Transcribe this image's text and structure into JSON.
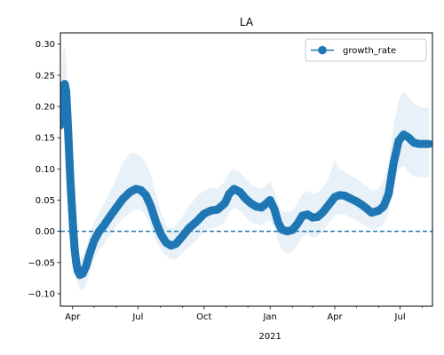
{
  "chart_data": {
    "type": "line",
    "title": "LA",
    "xlabel": "",
    "ylabel": "",
    "ylim": [
      -0.12,
      0.318
    ],
    "xlim": [
      "2020-03-15",
      "2021-08-15"
    ],
    "grid": false,
    "legend": {
      "position": "top-right"
    },
    "y_ticks": [
      -0.1,
      -0.05,
      0.0,
      0.05,
      0.1,
      0.15,
      0.2,
      0.25,
      0.3
    ],
    "y_tick_labels": [
      "−0.10",
      "−0.05",
      "0.00",
      "0.05",
      "0.10",
      "0.15",
      "0.20",
      "0.25",
      "0.30"
    ],
    "x_ticks": [
      "2020-04-01",
      "2020-07-01",
      "2020-10-01",
      "2021-01-01",
      "2021-04-01",
      "2021-07-01"
    ],
    "x_tick_labels": [
      "Apr",
      "Jul",
      "Oct",
      "Jan",
      "Apr",
      "Jul"
    ],
    "x_year_label": "2021",
    "x_minor_ticks": [
      "2020-05-01",
      "2020-06-01",
      "2020-08-01",
      "2020-09-01",
      "2020-11-01",
      "2020-12-01",
      "2021-02-01",
      "2021-03-01",
      "2021-05-01",
      "2021-06-01",
      "2021-08-01"
    ],
    "reference_line": {
      "y": 0.0,
      "style": "dashed",
      "color": "#1f77b4"
    },
    "series": [
      {
        "name": "growth_rate",
        "color": "#1f77b4",
        "marker": "circle",
        "band_color": "#1f77b4",
        "points": [
          [
            "2020-03-15",
            0.17,
            0.15,
            0.2
          ],
          [
            "2020-03-17",
            0.21,
            0.18,
            0.26
          ],
          [
            "2020-03-19",
            0.232,
            0.19,
            0.29
          ],
          [
            "2020-03-21",
            0.236,
            0.19,
            0.295
          ],
          [
            "2020-03-23",
            0.225,
            0.18,
            0.28
          ],
          [
            "2020-03-25",
            0.18,
            0.13,
            0.23
          ],
          [
            "2020-03-27",
            0.13,
            0.08,
            0.18
          ],
          [
            "2020-03-29",
            0.08,
            0.04,
            0.13
          ],
          [
            "2020-03-31",
            0.04,
            0.0,
            0.08
          ],
          [
            "2020-04-02",
            0.0,
            -0.03,
            0.04
          ],
          [
            "2020-04-04",
            -0.03,
            -0.06,
            0.0
          ],
          [
            "2020-04-06",
            -0.05,
            -0.075,
            -0.02
          ],
          [
            "2020-04-08",
            -0.063,
            -0.085,
            -0.035
          ],
          [
            "2020-04-11",
            -0.07,
            -0.095,
            -0.045
          ],
          [
            "2020-04-15",
            -0.068,
            -0.095,
            -0.04
          ],
          [
            "2020-04-20",
            -0.055,
            -0.085,
            -0.025
          ],
          [
            "2020-04-25",
            -0.035,
            -0.065,
            -0.005
          ],
          [
            "2020-05-01",
            -0.015,
            -0.045,
            0.015
          ],
          [
            "2020-05-08",
            0.0,
            -0.03,
            0.03
          ],
          [
            "2020-05-15",
            0.01,
            -0.02,
            0.045
          ],
          [
            "2020-05-22",
            0.022,
            -0.008,
            0.06
          ],
          [
            "2020-06-01",
            0.038,
            0.008,
            0.085
          ],
          [
            "2020-06-10",
            0.052,
            0.02,
            0.11
          ],
          [
            "2020-06-20",
            0.063,
            0.03,
            0.125
          ],
          [
            "2020-06-28",
            0.068,
            0.035,
            0.125
          ],
          [
            "2020-07-05",
            0.066,
            0.035,
            0.12
          ],
          [
            "2020-07-12",
            0.058,
            0.025,
            0.11
          ],
          [
            "2020-07-19",
            0.04,
            0.005,
            0.09
          ],
          [
            "2020-07-26",
            0.015,
            -0.015,
            0.06
          ],
          [
            "2020-08-02",
            -0.005,
            -0.03,
            0.03
          ],
          [
            "2020-08-09",
            -0.018,
            -0.04,
            0.01
          ],
          [
            "2020-08-16",
            -0.023,
            -0.045,
            0.005
          ],
          [
            "2020-08-23",
            -0.02,
            -0.045,
            0.01
          ],
          [
            "2020-09-01",
            -0.008,
            -0.035,
            0.025
          ],
          [
            "2020-09-10",
            0.005,
            -0.025,
            0.04
          ],
          [
            "2020-09-20",
            0.015,
            -0.015,
            0.055
          ],
          [
            "2020-10-01",
            0.028,
            0.0,
            0.065
          ],
          [
            "2020-10-10",
            0.033,
            0.005,
            0.07
          ],
          [
            "2020-10-20",
            0.035,
            0.008,
            0.068
          ],
          [
            "2020-10-30",
            0.045,
            0.015,
            0.08
          ],
          [
            "2020-11-05",
            0.06,
            0.03,
            0.095
          ],
          [
            "2020-11-12",
            0.068,
            0.038,
            0.1
          ],
          [
            "2020-11-20",
            0.063,
            0.033,
            0.095
          ],
          [
            "2020-11-28",
            0.052,
            0.023,
            0.085
          ],
          [
            "2020-12-05",
            0.045,
            0.015,
            0.075
          ],
          [
            "2020-12-12",
            0.04,
            0.012,
            0.07
          ],
          [
            "2020-12-20",
            0.038,
            0.01,
            0.068
          ],
          [
            "2020-12-27",
            0.045,
            0.015,
            0.075
          ],
          [
            "2021-01-01",
            0.05,
            0.018,
            0.08
          ],
          [
            "2021-01-07",
            0.035,
            0.005,
            0.065
          ],
          [
            "2021-01-12",
            0.015,
            -0.015,
            0.045
          ],
          [
            "2021-01-17",
            0.003,
            -0.03,
            0.032
          ],
          [
            "2021-01-25",
            0.0,
            -0.035,
            0.03
          ],
          [
            "2021-02-01",
            0.002,
            -0.032,
            0.033
          ],
          [
            "2021-02-08",
            0.012,
            -0.022,
            0.045
          ],
          [
            "2021-02-15",
            0.025,
            -0.008,
            0.06
          ],
          [
            "2021-02-22",
            0.027,
            -0.005,
            0.065
          ],
          [
            "2021-03-01",
            0.022,
            -0.01,
            0.06
          ],
          [
            "2021-03-08",
            0.023,
            -0.008,
            0.062
          ],
          [
            "2021-03-15",
            0.03,
            0.0,
            0.07
          ],
          [
            "2021-03-22",
            0.04,
            0.01,
            0.08
          ],
          [
            "2021-04-01",
            0.055,
            0.025,
            0.115
          ],
          [
            "2021-04-08",
            0.058,
            0.028,
            0.1
          ],
          [
            "2021-04-15",
            0.057,
            0.027,
            0.095
          ],
          [
            "2021-04-22",
            0.053,
            0.023,
            0.09
          ],
          [
            "2021-05-01",
            0.048,
            0.018,
            0.085
          ],
          [
            "2021-05-08",
            0.043,
            0.013,
            0.078
          ],
          [
            "2021-05-15",
            0.037,
            0.008,
            0.072
          ],
          [
            "2021-05-22",
            0.03,
            0.003,
            0.065
          ],
          [
            "2021-06-01",
            0.033,
            0.005,
            0.068
          ],
          [
            "2021-06-08",
            0.04,
            0.012,
            0.08
          ],
          [
            "2021-06-15",
            0.06,
            0.03,
            0.11
          ],
          [
            "2021-06-22",
            0.11,
            0.07,
            0.17
          ],
          [
            "2021-06-29",
            0.145,
            0.1,
            0.21
          ],
          [
            "2021-07-06",
            0.155,
            0.105,
            0.225
          ],
          [
            "2021-07-13",
            0.15,
            0.095,
            0.215
          ],
          [
            "2021-07-20",
            0.142,
            0.088,
            0.205
          ],
          [
            "2021-07-27",
            0.14,
            0.087,
            0.2
          ],
          [
            "2021-08-03",
            0.14,
            0.086,
            0.198
          ],
          [
            "2021-08-10",
            0.14,
            0.086,
            0.198
          ]
        ]
      }
    ]
  }
}
